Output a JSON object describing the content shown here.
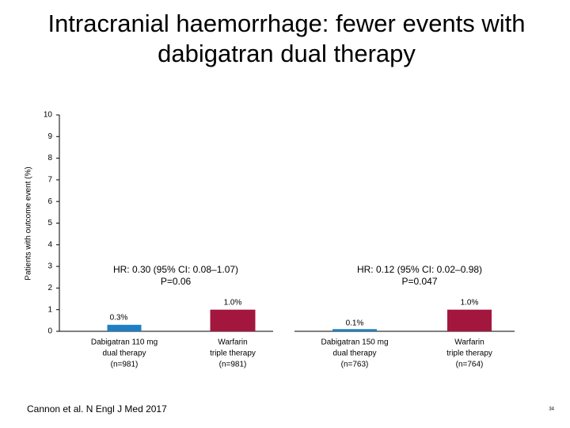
{
  "chart_data": {
    "type": "bar",
    "title": [
      "Intracranial haemorrhage: fewer events with",
      "dabigatran dual therapy"
    ],
    "ylabel": "Patients with outcome event (%)",
    "categories": [
      [
        "Dabigatran 110 mg",
        "dual therapy",
        "(n=981)"
      ],
      [
        "Warfarin",
        "triple therapy",
        "(n=981)"
      ],
      [
        "Dabigatran 150 mg",
        "dual therapy",
        "(n=763)"
      ],
      [
        "Warfarin",
        "triple therapy",
        "(n=764)"
      ]
    ],
    "values": [
      0.3,
      1.0,
      0.1,
      1.0
    ],
    "value_labels": [
      "0.3%",
      "1.0%",
      "0.1%",
      "1.0%"
    ],
    "colors": [
      "#1f7fc4",
      "#a3173f",
      "#1f7fc4",
      "#a3173f"
    ],
    "ylim": [
      0,
      10
    ],
    "yticks": [
      0,
      1,
      2,
      3,
      4,
      5,
      6,
      7,
      8,
      9,
      10
    ],
    "annotations": [
      [
        "HR: 0.30 (95% CI: 0.08–1.07)",
        "P=0.06"
      ],
      [
        "HR: 0.12 (95% CI: 0.02–0.98)",
        "P=0.047"
      ]
    ],
    "footnote": "Cannon et al. N Engl J Med 2017",
    "page_number": "34"
  }
}
